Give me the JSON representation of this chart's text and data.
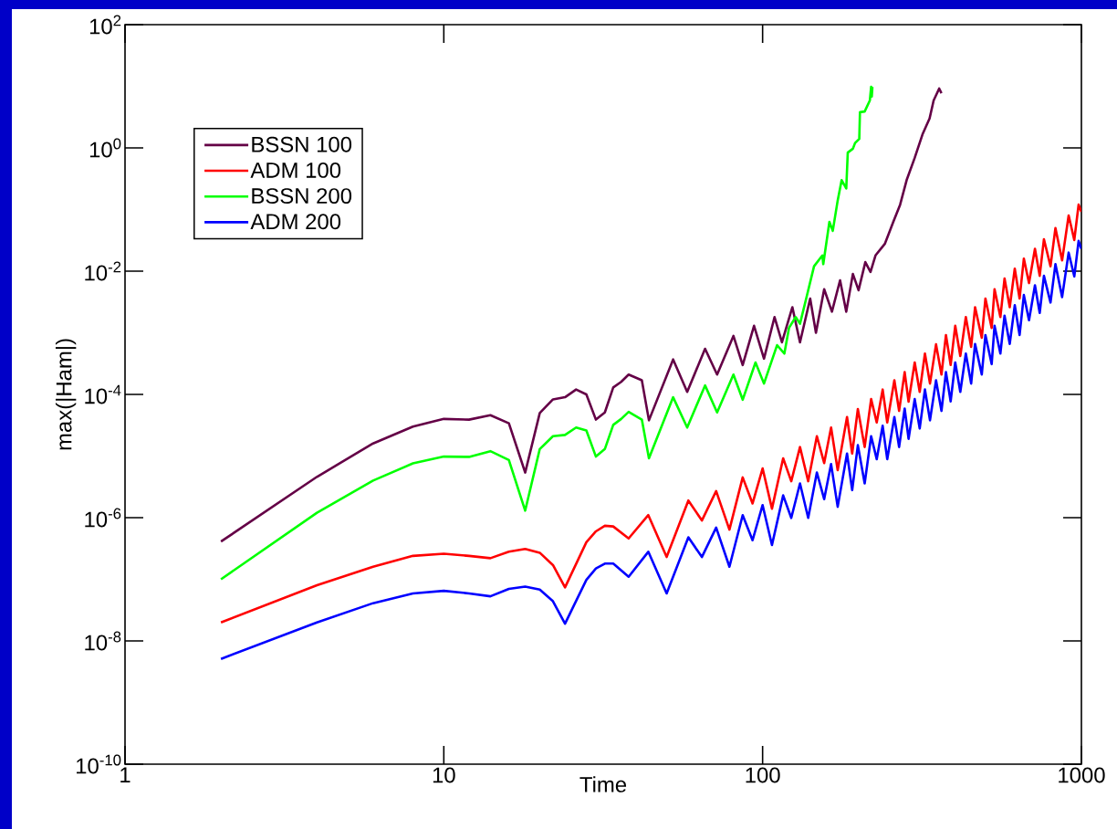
{
  "chart_data": {
    "type": "line",
    "xlabel": "Time",
    "ylabel": "max(|Ham|)",
    "log": "xy",
    "legend": "top left",
    "xlim": [
      1,
      1000
    ],
    "ylim": [
      1e-10,
      100
    ],
    "xticks": [
      1,
      10,
      100,
      1000
    ],
    "yticks": [
      {
        "value": 1e-10,
        "label": "10$^{-10}$"
      },
      {
        "value": 1e-08,
        "label": "10$^{-8}$"
      },
      {
        "value": 1e-06,
        "label": "10$^{-6}$"
      },
      {
        "value": 0.0001,
        "label": "10$^{-4}$"
      },
      {
        "value": 0.01,
        "label": "10$^{-2}$"
      },
      {
        "value": 1,
        "label": "10$^{0}$"
      },
      {
        "value": 100,
        "label": "10$^{2}$"
      }
    ],
    "series": [
      {
        "name": "BSSN 100",
        "color": "#640046",
        "x": [
          2,
          4,
          6,
          8,
          10,
          12,
          14,
          16,
          18,
          20,
          22,
          24,
          26,
          28,
          30,
          32,
          34,
          36,
          38,
          41.8,
          44,
          52.4,
          58,
          66,
          72,
          81,
          86.6,
          94,
          101,
          109,
          115,
          124,
          131,
          141,
          147,
          156,
          165,
          175,
          183,
          192,
          200,
          210,
          218,
          226,
          242,
          257,
          270,
          283,
          300,
          318,
          334,
          344,
          358,
          364
        ],
        "values": [
          4.1e-07,
          4.6e-06,
          1.6e-05,
          3e-05,
          4e-05,
          3.9e-05,
          4.6e-05,
          3.4e-05,
          5.4e-06,
          5e-05,
          8.3e-05,
          9e-05,
          0.00012,
          0.0001,
          3.9e-05,
          5.1e-05,
          0.00013,
          0.00016,
          0.00021,
          0.00017,
          3.8e-05,
          0.00037,
          0.00011,
          0.00055,
          0.00021,
          0.00089,
          0.0003,
          0.0013,
          0.00038,
          0.0018,
          0.0007,
          0.0026,
          0.0007,
          0.0036,
          0.001,
          0.0051,
          0.0022,
          0.0071,
          0.0022,
          0.009,
          0.0049,
          0.014,
          0.0097,
          0.018,
          0.028,
          0.063,
          0.12,
          0.3,
          0.69,
          1.7,
          3.0,
          5.9,
          9.2,
          7.7
        ]
      },
      {
        "name": "ADM 100",
        "color": "#ff0000",
        "x": [
          2,
          4,
          6,
          8,
          10,
          12,
          14,
          16,
          18,
          20,
          22,
          24,
          28,
          30,
          32,
          34,
          38,
          43.8,
          50,
          58.5,
          64.5,
          71.5,
          78.7,
          86.6,
          93,
          100,
          107,
          116,
          123,
          131,
          139,
          148,
          156,
          164,
          172,
          184,
          191,
          199,
          209,
          219,
          228,
          238,
          246,
          259,
          268,
          279,
          287,
          300,
          311,
          323,
          335,
          350,
          364,
          376,
          389,
          402,
          417,
          434,
          451,
          464,
          487,
          500,
          523,
          534,
          557,
          574,
          596,
          618,
          640,
          660,
          685,
          715,
          740,
          763,
          800,
          829,
          870,
          912,
          950,
          980,
          1000
        ],
        "values": [
          2e-08,
          8e-08,
          1.6e-07,
          2.4e-07,
          2.6e-07,
          2.4e-07,
          2.2e-07,
          2.8e-07,
          3.1e-07,
          2.7e-07,
          1.7e-07,
          7.4e-08,
          4e-07,
          6e-07,
          7.4e-07,
          7.2e-07,
          4.6e-07,
          1.1e-06,
          2.3e-07,
          1.9e-06,
          9e-07,
          2.7e-06,
          6.4e-07,
          4.5e-06,
          1.7e-06,
          6.3e-06,
          1.4e-06,
          9.2e-06,
          3.9e-06,
          1.4e-05,
          3.9e-06,
          2.1e-05,
          7.7e-06,
          2.9e-05,
          5.9e-06,
          4.3e-05,
          1.1e-05,
          5.8e-05,
          1.4e-05,
          8.4e-05,
          3.5e-05,
          0.00012,
          3.5e-05,
          0.00017,
          5.4e-05,
          0.00023,
          7.6e-05,
          0.00033,
          0.00011,
          0.00046,
          0.00015,
          0.00065,
          0.00021,
          0.00092,
          0.0003,
          0.0013,
          0.00042,
          0.0018,
          0.00059,
          0.0026,
          0.00083,
          0.0036,
          0.0012,
          0.0051,
          0.0018,
          0.0076,
          0.0026,
          0.011,
          0.0036,
          0.016,
          0.0064,
          0.023,
          0.0084,
          0.033,
          0.012,
          0.05,
          0.015,
          0.08,
          0.032,
          0.12,
          0.092
        ]
      },
      {
        "name": "BSSN 200",
        "color": "#00ff00",
        "x": [
          2,
          4,
          6,
          8,
          10,
          12,
          14,
          16,
          18,
          20,
          22,
          24,
          26,
          28,
          30,
          32,
          34,
          36,
          38,
          41.8,
          44,
          52.4,
          58,
          66,
          72,
          81,
          86.6,
          95,
          101,
          111,
          117,
          121,
          127,
          131,
          137,
          145,
          154,
          155,
          162,
          166,
          172,
          177,
          183,
          185,
          192,
          195,
          201,
          202,
          209,
          217,
          219,
          220,
          221
        ],
        "values": [
          1e-07,
          1.2e-06,
          4e-06,
          7.6e-06,
          9.8e-06,
          9.7e-06,
          1.2e-05,
          8.6e-06,
          1.3e-06,
          1.3e-05,
          2.1e-05,
          2.2e-05,
          2.9e-05,
          2.6e-05,
          9.8e-06,
          1.3e-05,
          3.2e-05,
          4e-05,
          5.2e-05,
          3.9e-05,
          9.2e-06,
          9e-05,
          2.9e-05,
          0.00014,
          5.1e-05,
          0.00021,
          8.2e-05,
          0.00033,
          0.00015,
          0.00063,
          0.00046,
          0.0012,
          0.0018,
          0.0014,
          0.0036,
          0.012,
          0.018,
          0.013,
          0.063,
          0.045,
          0.14,
          0.3,
          0.22,
          0.84,
          0.97,
          1.2,
          1.4,
          3.8,
          3.9,
          5.9,
          9.8,
          6.8,
          9.8
        ]
      },
      {
        "name": "ADM 200",
        "color": "#0000ff",
        "x": [
          2,
          4,
          6,
          8,
          10,
          12,
          14,
          16,
          18,
          20,
          22,
          24,
          28,
          30,
          32,
          34,
          38,
          43.8,
          50,
          58.5,
          64.5,
          71.5,
          78.7,
          86.6,
          93,
          100,
          107,
          116,
          123,
          131,
          139,
          148,
          156,
          164,
          172,
          184,
          191,
          199,
          209,
          219,
          228,
          238,
          246,
          259,
          268,
          279,
          287,
          300,
          311,
          323,
          335,
          350,
          364,
          376,
          389,
          402,
          417,
          434,
          451,
          464,
          487,
          500,
          523,
          534,
          557,
          574,
          596,
          618,
          640,
          660,
          685,
          715,
          740,
          763,
          800,
          829,
          870,
          912,
          950,
          980,
          1000
        ],
        "values": [
          5.1e-09,
          2e-08,
          4.1e-08,
          5.9e-08,
          6.5e-08,
          5.9e-08,
          5.3e-08,
          7e-08,
          7.6e-08,
          6.8e-08,
          4.4e-08,
          1.9e-08,
          9.8e-08,
          1.5e-07,
          1.8e-07,
          1.8e-07,
          1.1e-07,
          2.8e-07,
          5.9e-08,
          4.8e-07,
          2.3e-07,
          6.9e-07,
          1.6e-07,
          1.1e-06,
          4.3e-07,
          1.6e-06,
          3.6e-07,
          2.3e-06,
          9.9e-07,
          3.6e-06,
          9.9e-07,
          5.4e-06,
          2e-06,
          7.4e-06,
          1.5e-06,
          1.1e-05,
          2.8e-06,
          1.5e-05,
          3.6e-06,
          2.1e-05,
          8.9e-06,
          3.1e-05,
          8.9e-06,
          4.3e-05,
          1.4e-05,
          5.9e-05,
          1.9e-05,
          8.4e-05,
          2.8e-05,
          0.00012,
          3.8e-05,
          0.00017,
          5.4e-05,
          0.00023,
          7.7e-05,
          0.00033,
          0.00011,
          0.00046,
          0.00015,
          0.00066,
          0.00021,
          0.00092,
          0.00031,
          0.0013,
          0.00046,
          0.0019,
          0.00066,
          0.0028,
          0.00092,
          0.0041,
          0.0016,
          0.0059,
          0.0021,
          0.0084,
          0.0031,
          0.013,
          0.0038,
          0.02,
          0.0082,
          0.031,
          0.023
        ]
      }
    ]
  }
}
